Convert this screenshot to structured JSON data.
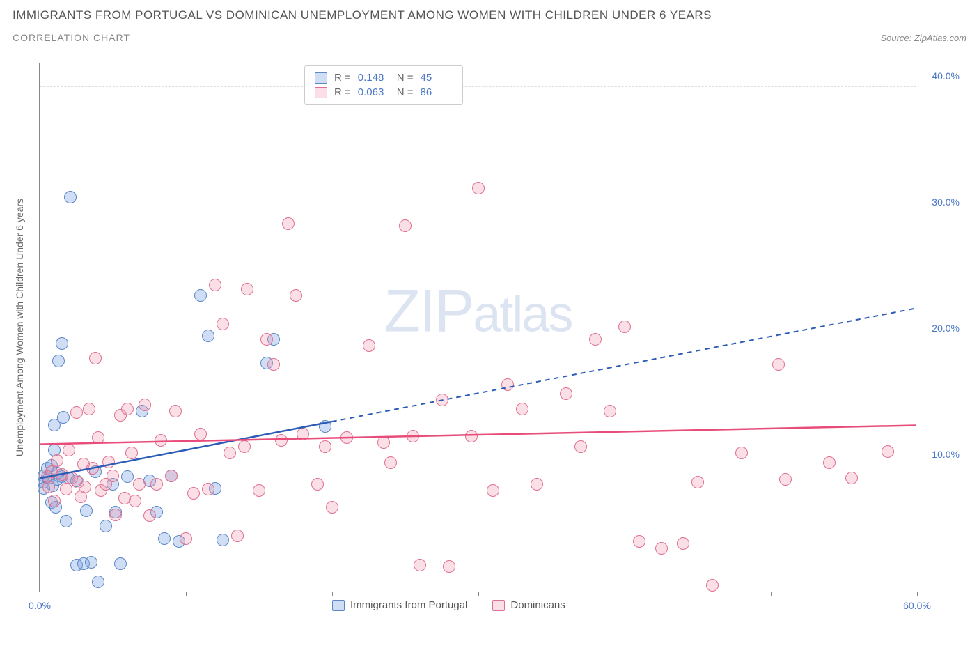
{
  "header": {
    "title": "IMMIGRANTS FROM PORTUGAL VS DOMINICAN UNEMPLOYMENT AMONG WOMEN WITH CHILDREN UNDER 6 YEARS",
    "subtitle": "CORRELATION CHART",
    "source": "Source: ZipAtlas.com"
  },
  "chart": {
    "type": "scatter",
    "ylabel": "Unemployment Among Women with Children Under 6 years",
    "xlim": [
      0,
      60
    ],
    "ylim": [
      0,
      42
    ],
    "xtick_positions": [
      0,
      10,
      20,
      30,
      40,
      50,
      60
    ],
    "xtick_labels": {
      "0": "0.0%",
      "60": "60.0%"
    },
    "ytick_positions": [
      10,
      20,
      30,
      40
    ],
    "ytick_labels": {
      "10": "10.0%",
      "20": "20.0%",
      "30": "30.0%",
      "40": "40.0%"
    },
    "background_color": "#ffffff",
    "grid_color": "#dddddd",
    "axis_color": "#888888",
    "label_color": "#4a76c7",
    "point_radius": 9,
    "watermark": {
      "zip": "ZIP",
      "atlas": "atlas"
    },
    "series": [
      {
        "name": "Immigrants from Portugal",
        "color_fill": "rgba(117,160,224,0.35)",
        "color_stroke": "#5b87c7",
        "R": "0.148",
        "N": "45",
        "trend": {
          "x1": 0,
          "y1": 9.0,
          "x2": 60,
          "y2": 22.5,
          "solid_until_x": 20,
          "color": "#2b5bb5",
          "width": 2.5
        },
        "points": [
          [
            0.3,
            9.2
          ],
          [
            0.3,
            8.7
          ],
          [
            0.3,
            8.2
          ],
          [
            0.5,
            9.8
          ],
          [
            0.6,
            9.0
          ],
          [
            0.8,
            7.1
          ],
          [
            0.8,
            10.0
          ],
          [
            0.9,
            8.4
          ],
          [
            1.0,
            11.2
          ],
          [
            1.0,
            13.2
          ],
          [
            1.1,
            6.7
          ],
          [
            1.2,
            8.9
          ],
          [
            1.2,
            9.4
          ],
          [
            1.3,
            18.3
          ],
          [
            1.5,
            19.7
          ],
          [
            1.5,
            9.1
          ],
          [
            1.6,
            13.8
          ],
          [
            1.8,
            5.6
          ],
          [
            2.0,
            9.0
          ],
          [
            2.1,
            31.3
          ],
          [
            2.5,
            8.8
          ],
          [
            2.5,
            2.1
          ],
          [
            3.0,
            2.2
          ],
          [
            3.2,
            6.4
          ],
          [
            3.5,
            2.3
          ],
          [
            3.8,
            9.5
          ],
          [
            4.0,
            0.8
          ],
          [
            4.5,
            5.2
          ],
          [
            5.0,
            8.5
          ],
          [
            5.2,
            6.3
          ],
          [
            5.5,
            2.2
          ],
          [
            6.0,
            9.1
          ],
          [
            7.0,
            14.3
          ],
          [
            7.5,
            8.8
          ],
          [
            8.0,
            6.3
          ],
          [
            8.5,
            4.2
          ],
          [
            9.0,
            9.2
          ],
          [
            9.5,
            4.0
          ],
          [
            11.0,
            23.5
          ],
          [
            11.5,
            20.3
          ],
          [
            12.0,
            8.2
          ],
          [
            12.5,
            4.1
          ],
          [
            15.5,
            18.1
          ],
          [
            16.0,
            20.0
          ],
          [
            19.5,
            13.1
          ]
        ]
      },
      {
        "name": "Dominicans",
        "color_fill": "rgba(240,150,175,0.30)",
        "color_stroke": "#e0708f",
        "R": "0.063",
        "N": "86",
        "trend": {
          "x1": 0,
          "y1": 11.7,
          "x2": 60,
          "y2": 13.2,
          "solid_until_x": 60,
          "color": "#e84c7a",
          "width": 2.5
        },
        "points": [
          [
            0.5,
            9.1
          ],
          [
            0.6,
            8.3
          ],
          [
            0.8,
            9.5
          ],
          [
            1.0,
            7.2
          ],
          [
            1.2,
            10.4
          ],
          [
            1.5,
            9.3
          ],
          [
            1.8,
            8.1
          ],
          [
            2.0,
            11.2
          ],
          [
            2.2,
            9.0
          ],
          [
            2.5,
            14.2
          ],
          [
            2.6,
            8.7
          ],
          [
            2.8,
            7.5
          ],
          [
            3.0,
            10.1
          ],
          [
            3.1,
            8.3
          ],
          [
            3.4,
            14.5
          ],
          [
            3.6,
            9.8
          ],
          [
            3.8,
            18.5
          ],
          [
            4.0,
            12.2
          ],
          [
            4.2,
            8.0
          ],
          [
            4.5,
            8.5
          ],
          [
            4.7,
            10.3
          ],
          [
            5.0,
            9.2
          ],
          [
            5.2,
            6.1
          ],
          [
            5.5,
            14.0
          ],
          [
            5.8,
            7.4
          ],
          [
            6.0,
            14.5
          ],
          [
            6.3,
            11.0
          ],
          [
            6.5,
            7.2
          ],
          [
            6.8,
            8.5
          ],
          [
            7.2,
            14.8
          ],
          [
            7.5,
            6.0
          ],
          [
            8.0,
            8.5
          ],
          [
            8.3,
            12.0
          ],
          [
            9.0,
            9.2
          ],
          [
            9.3,
            14.3
          ],
          [
            10.0,
            4.2
          ],
          [
            10.5,
            7.8
          ],
          [
            11.0,
            12.5
          ],
          [
            11.5,
            8.1
          ],
          [
            12.0,
            24.3
          ],
          [
            12.5,
            21.2
          ],
          [
            13.0,
            11.0
          ],
          [
            13.5,
            4.4
          ],
          [
            14.0,
            11.5
          ],
          [
            14.2,
            24.0
          ],
          [
            15.0,
            8.0
          ],
          [
            15.5,
            20.0
          ],
          [
            16.0,
            18.0
          ],
          [
            16.5,
            12.0
          ],
          [
            17.0,
            29.2
          ],
          [
            17.5,
            23.5
          ],
          [
            18.0,
            12.5
          ],
          [
            19.0,
            8.5
          ],
          [
            19.5,
            11.5
          ],
          [
            20.0,
            6.7
          ],
          [
            21.0,
            12.2
          ],
          [
            22.5,
            19.5
          ],
          [
            23.5,
            11.8
          ],
          [
            24.0,
            10.2
          ],
          [
            25.0,
            29.0
          ],
          [
            25.5,
            12.3
          ],
          [
            26.0,
            2.1
          ],
          [
            27.5,
            15.2
          ],
          [
            28.0,
            2.0
          ],
          [
            29.5,
            12.3
          ],
          [
            30.0,
            32.0
          ],
          [
            31.0,
            8.0
          ],
          [
            32.0,
            16.4
          ],
          [
            33.0,
            14.5
          ],
          [
            34.0,
            8.5
          ],
          [
            36.0,
            15.7
          ],
          [
            37.0,
            11.5
          ],
          [
            38.0,
            20.0
          ],
          [
            39.0,
            14.3
          ],
          [
            40.0,
            21.0
          ],
          [
            41.0,
            4.0
          ],
          [
            42.5,
            3.4
          ],
          [
            44.0,
            3.8
          ],
          [
            45.0,
            8.7
          ],
          [
            46.0,
            0.5
          ],
          [
            48.0,
            11.0
          ],
          [
            50.5,
            18.0
          ],
          [
            51.0,
            8.9
          ],
          [
            54.0,
            10.2
          ],
          [
            55.5,
            9.0
          ],
          [
            58.0,
            11.1
          ]
        ]
      }
    ]
  }
}
